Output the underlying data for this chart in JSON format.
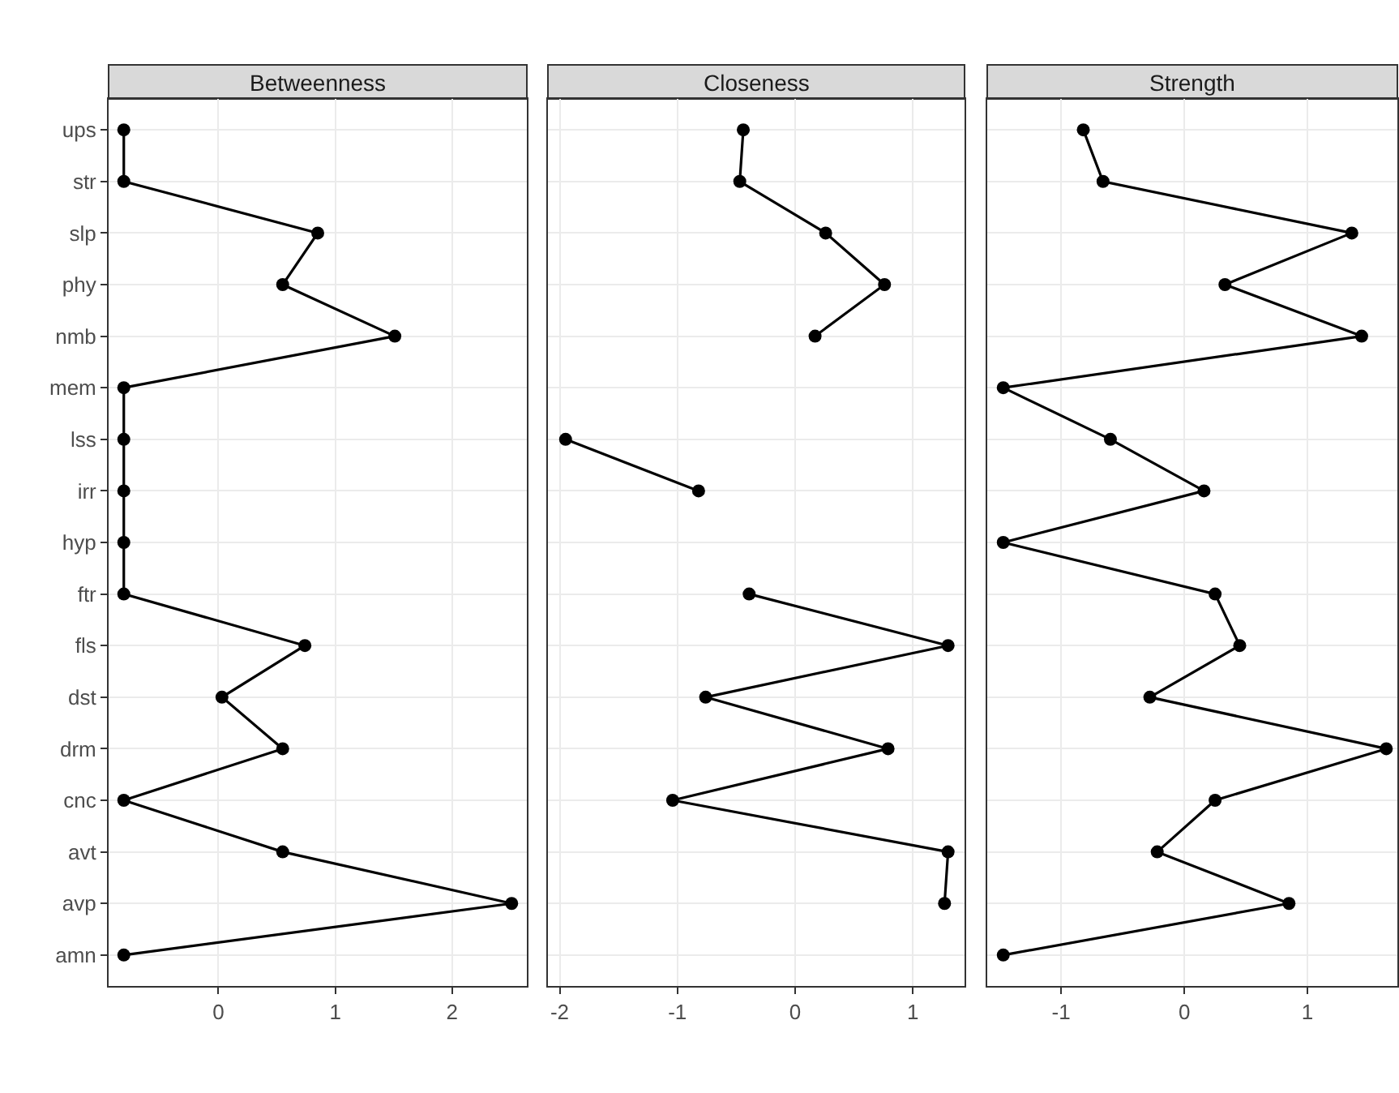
{
  "chart_data": [
    {
      "type": "line",
      "title": "Betweenness",
      "orientation": "horizontal",
      "categories": [
        "ups",
        "str",
        "slp",
        "phy",
        "nmb",
        "mem",
        "lss",
        "irr",
        "hyp",
        "ftr",
        "fls",
        "dst",
        "drm",
        "cnc",
        "avt",
        "avp",
        "amn"
      ],
      "series": [
        {
          "color": "#000000",
          "values": [
            -0.81,
            -0.81,
            0.85,
            0.55,
            1.51,
            -0.81,
            -0.81,
            -0.81,
            -0.81,
            -0.81,
            0.74,
            0.03,
            0.55,
            -0.81,
            0.55,
            2.51,
            -0.81
          ]
        }
      ],
      "xlim": [
        -0.94,
        2.64
      ],
      "xticks": [
        0,
        1,
        2
      ],
      "grid": true,
      "marker": "circle",
      "line_style": "solid"
    },
    {
      "type": "line",
      "title": "Closeness",
      "orientation": "horizontal",
      "categories": [
        "ups",
        "str",
        "slp",
        "phy",
        "nmb",
        "mem",
        "lss",
        "irr",
        "hyp",
        "ftr",
        "fls",
        "dst",
        "drm",
        "cnc",
        "avt",
        "avp",
        "amn"
      ],
      "series": [
        {
          "color": "#000000",
          "values": [
            -0.44,
            -0.47,
            0.26,
            0.76,
            0.17,
            null,
            -1.95,
            -0.82,
            null,
            -0.39,
            1.3,
            -0.76,
            0.79,
            -1.04,
            1.3,
            1.27,
            null
          ]
        }
      ],
      "xlim": [
        -2.1,
        1.44
      ],
      "xticks": [
        -2,
        -1,
        0,
        1
      ],
      "grid": true,
      "marker": "circle",
      "line_style": "solid",
      "tick_labels": "x"
    },
    {
      "type": "line",
      "title": "Strength",
      "orientation": "horizontal",
      "categories": [
        "ups",
        "str",
        "slp",
        "phy",
        "nmb",
        "mem",
        "lss",
        "irr",
        "hyp",
        "ftr",
        "fls",
        "dst",
        "drm",
        "cnc",
        "avt",
        "avp",
        "amn"
      ],
      "series": [
        {
          "color": "#000000",
          "values": [
            -0.82,
            -0.66,
            1.36,
            0.33,
            1.44,
            -1.47,
            -0.6,
            0.16,
            -1.47,
            0.25,
            0.45,
            -0.28,
            1.64,
            0.25,
            -0.22,
            0.85,
            -1.47
          ]
        }
      ],
      "xlim": [
        -1.6,
        1.73
      ],
      "xticks": [
        -1,
        0,
        1
      ],
      "grid": true,
      "marker": "circle",
      "line_style": "solid",
      "tick_labels": "x"
    }
  ]
}
